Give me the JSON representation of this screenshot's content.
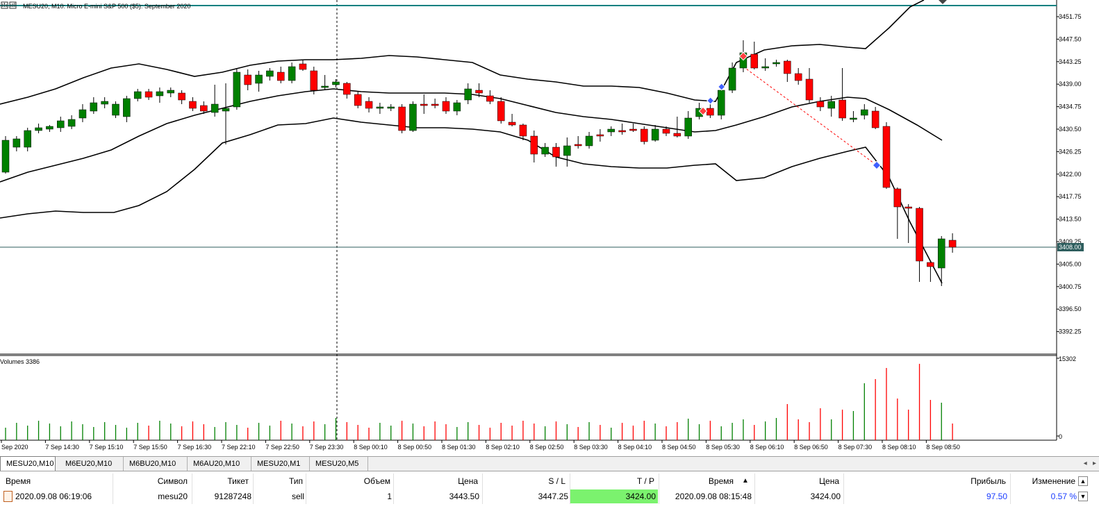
{
  "chart": {
    "title": "MESU20, M10:  Micro E-mini S&P 500 ($5): September 2020",
    "current_price_label": "3408.00",
    "price_labels": [
      "3451.75",
      "3447.50",
      "3443.25",
      "3439.00",
      "3434.75",
      "3430.50",
      "3426.25",
      "3422.00",
      "3417.75",
      "3413.50",
      "3409.25",
      "3405.00",
      "3400.75",
      "3396.50",
      "3392.25"
    ],
    "volume_label": "Volumes 3386",
    "volume_scale_top": "15302",
    "volume_scale_bottom": "0",
    "time_labels": [
      "Sep 2020",
      "7 Sep 14:30",
      "7 Sep 15:10",
      "7 Sep 15:50",
      "7 Sep 16:30",
      "7 Sep 22:10",
      "7 Sep 22:50",
      "7 Sep 23:30",
      "8 Sep 00:10",
      "8 Sep 00:50",
      "8 Sep 01:30",
      "8 Sep 02:10",
      "8 Sep 02:50",
      "8 Sep 03:30",
      "8 Sep 04:10",
      "8 Sep 04:50",
      "8 Sep 05:30",
      "8 Sep 06:10",
      "8 Sep 06:50",
      "8 Sep 07:30",
      "8 Sep 08:10",
      "8 Sep 08:50"
    ],
    "colors": {
      "bull": "#008000",
      "bear": "#ff0000",
      "band": "#000000",
      "bid_line": "#2e5e5e",
      "ask_line": "#008080"
    }
  },
  "tabs": [
    {
      "label": "MESU20,M10",
      "active": true
    },
    {
      "label": "M6EU20,M10",
      "active": false
    },
    {
      "label": "M6BU20,M10",
      "active": false
    },
    {
      "label": "M6AU20,M10",
      "active": false
    },
    {
      "label": "MESU20,M1",
      "active": false
    },
    {
      "label": "MESU20,M5",
      "active": false
    }
  ],
  "trade_table": {
    "headers": {
      "open_time": "Время",
      "symbol": "Символ",
      "ticket": "Тикет",
      "type": "Тип",
      "volume": "Объем",
      "open_price": "Цена",
      "sl": "S / L",
      "tp": "T / P",
      "close_time": "Время",
      "close_price": "Цена",
      "profit": "Прибыль",
      "change": "Изменение"
    },
    "row": {
      "open_time": "2020.09.08 06:19:06",
      "symbol": "mesu20",
      "ticket": "91287248",
      "type": "sell",
      "volume": "1",
      "open_price": "3443.50",
      "sl": "3447.25",
      "tp": "3424.00",
      "close_time": "2020.09.08 08:15:48",
      "close_price": "3424.00",
      "profit": "97.50",
      "change": "0.57 %"
    }
  }
}
